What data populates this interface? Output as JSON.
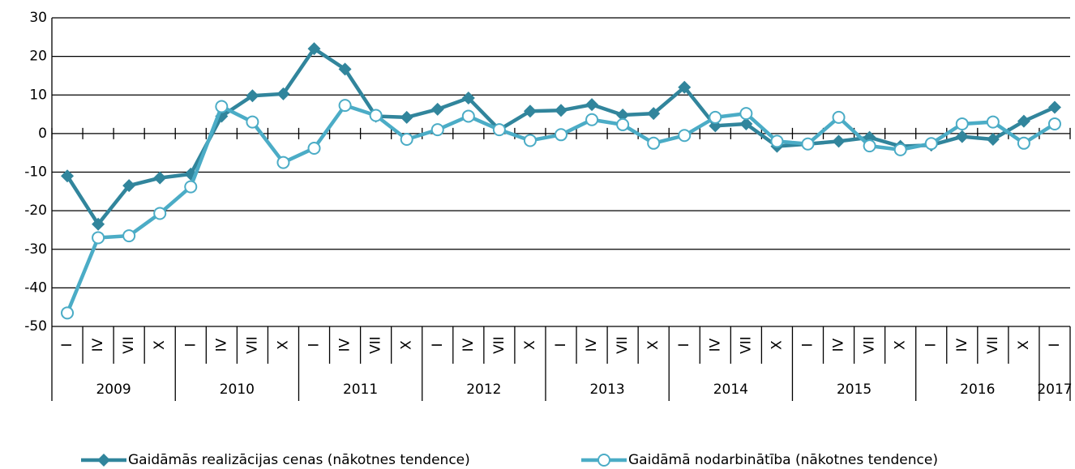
{
  "chart_data": {
    "type": "line",
    "categories": [
      "I",
      "IV",
      "VII",
      "X",
      "I",
      "IV",
      "VII",
      "X",
      "I",
      "IV",
      "VII",
      "X",
      "I",
      "IV",
      "VII",
      "X",
      "I",
      "IV",
      "VII",
      "X",
      "I",
      "IV",
      "VII",
      "X",
      "I",
      "IV",
      "VII",
      "X",
      "I",
      "IV",
      "VII",
      "X",
      "I"
    ],
    "category_groups": [
      "2009",
      "2010",
      "2011",
      "2012",
      "2013",
      "2014",
      "2015",
      "2016",
      "2017"
    ],
    "series": [
      {
        "name": "Gaidāmās realizācijas cenas (nākotnes tendence)",
        "color": "#31859c",
        "marker": "diamond",
        "values": [
          -11,
          -23.5,
          -13.5,
          -11.5,
          -10.5,
          4.5,
          9.8,
          10.3,
          22,
          16.7,
          4.5,
          4.2,
          6.3,
          9.2,
          1,
          5.8,
          6,
          7.5,
          4.8,
          5.2,
          12,
          2,
          2.5,
          -3.3,
          -2.7,
          -2,
          -1,
          -3.3,
          -3,
          -0.8,
          -1.5,
          3.2,
          6.8
        ]
      },
      {
        "name": "Gaidāmā nodarbinātība (nākotnes tendence)",
        "color": "#4bacc6",
        "marker": "circle",
        "values": [
          -46.5,
          -27,
          -26.5,
          -20.7,
          -13.8,
          7,
          3,
          -7.5,
          -3.8,
          7.3,
          4.7,
          -1.5,
          1,
          4.5,
          1,
          -1.8,
          -0.3,
          3.6,
          2.3,
          -2.5,
          -0.5,
          4.2,
          5.2,
          -2,
          -2.7,
          4.2,
          -3.2,
          -4.2,
          -2.6,
          2.5,
          3,
          -2.5,
          2.5
        ]
      }
    ],
    "ylim": [
      -50,
      30
    ],
    "yticks": [
      -50,
      -40,
      -30,
      -20,
      -10,
      0,
      10,
      20,
      30
    ],
    "grid": true,
    "legend": "bottom"
  }
}
